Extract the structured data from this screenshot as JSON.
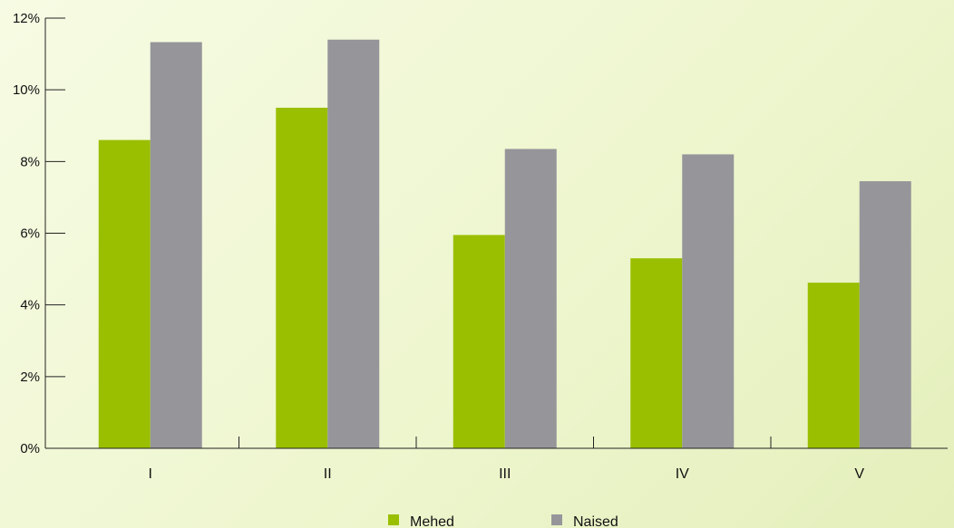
{
  "chart_data": {
    "type": "bar",
    "categories": [
      "I",
      "II",
      "III",
      "IV",
      "V"
    ],
    "series": [
      {
        "name": "Mehed",
        "values": [
          8.6,
          9.5,
          5.95,
          5.3,
          4.62
        ],
        "color": "#9abf00"
      },
      {
        "name": "Naised",
        "values": [
          11.33,
          11.4,
          8.35,
          8.2,
          7.45
        ],
        "color": "#96959a"
      }
    ],
    "ylim": [
      0,
      12
    ],
    "yticks": [
      0,
      2,
      4,
      6,
      8,
      10,
      12
    ],
    "ytick_labels": [
      "0%",
      "2%",
      "4%",
      "6%",
      "8%",
      "10%",
      "12%"
    ],
    "title": "",
    "xlabel": "",
    "ylabel": "",
    "grid": false,
    "legend_position": "bottom-center"
  }
}
